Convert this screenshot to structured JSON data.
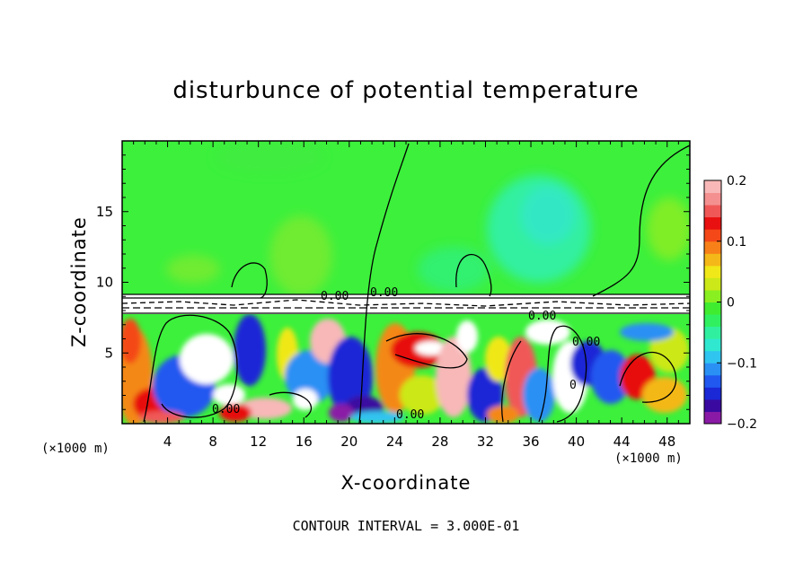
{
  "chart_data": {
    "type": "heatmap",
    "title": "disturbunce of potential temperature",
    "xlabel": "X-coordinate",
    "ylabel": "Z-coordinate",
    "x_unit_label": "(×1000 m)",
    "x_ticks": [
      4,
      8,
      12,
      16,
      20,
      24,
      28,
      32,
      36,
      40,
      44,
      48
    ],
    "y_ticks": [
      5,
      10,
      15
    ],
    "xlim": [
      0,
      50
    ],
    "ylim": [
      0,
      20
    ],
    "colorbar": {
      "ticks": [
        "0.2",
        "0.1",
        "0",
        "−0.1",
        "−0.2"
      ],
      "range": [
        -0.2,
        0.2
      ],
      "colors": [
        "#8a1aa6",
        "#3a0aa0",
        "#1a28d6",
        "#2058f0",
        "#2a90f4",
        "#30c4f0",
        "#30e8d0",
        "#30f0a0",
        "#30f060",
        "#40ec30",
        "#8aef20",
        "#cce818",
        "#f0e818",
        "#f4b818",
        "#f88018",
        "#f44818",
        "#e81010",
        "#f05858",
        "#f49090",
        "#f8b8b8"
      ]
    },
    "contour_labels": [
      "0.00",
      "0.00",
      "0.00",
      "0.00",
      "0.00",
      "0.00",
      "0"
    ],
    "contour_interval_text": "CONTOUR INTERVAL = 3.000E-01"
  }
}
